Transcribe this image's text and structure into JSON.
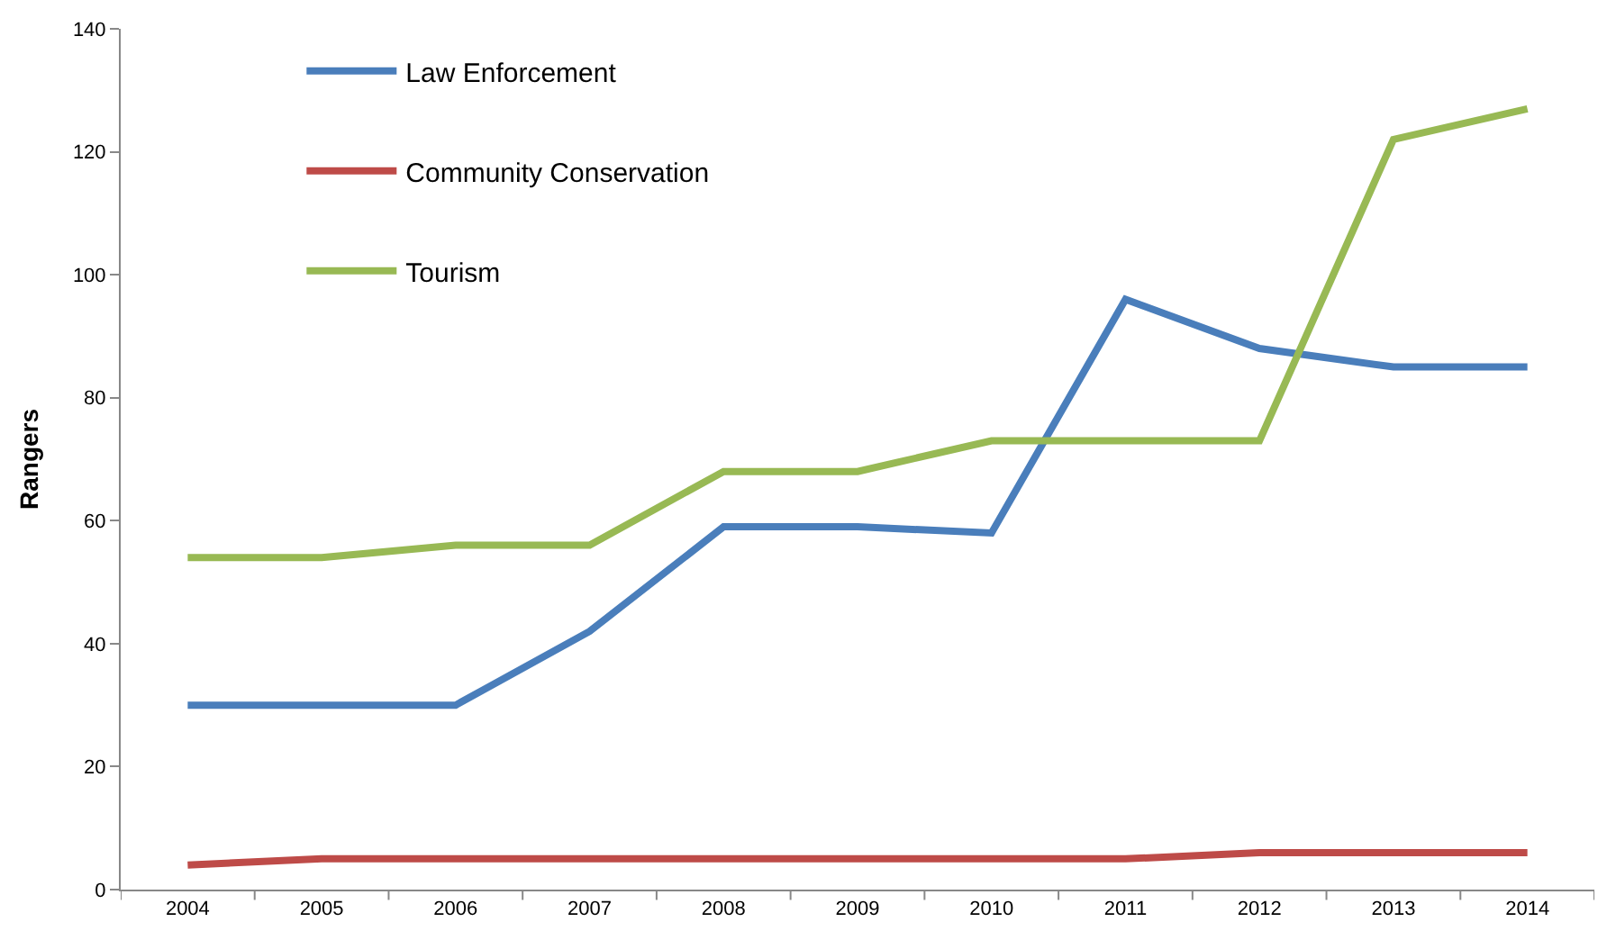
{
  "chart_data": {
    "type": "line",
    "ylabel": "Rangers",
    "categories": [
      "2004",
      "2005",
      "2006",
      "2007",
      "2008",
      "2009",
      "2010",
      "2011",
      "2012",
      "2013",
      "2014"
    ],
    "series": [
      {
        "name": "Law Enforcement",
        "color": "#4a7ebb",
        "values": [
          30,
          30,
          30,
          42,
          59,
          59,
          58,
          96,
          88,
          85,
          85
        ]
      },
      {
        "name": "Community Conservation",
        "color": "#be4b48",
        "values": [
          4,
          5,
          5,
          5,
          5,
          5,
          5,
          5,
          6,
          6,
          6
        ]
      },
      {
        "name": "Tourism",
        "color": "#98b954",
        "values": [
          54,
          54,
          56,
          56,
          68,
          68,
          73,
          73,
          73,
          122,
          127
        ]
      }
    ],
    "ylim": [
      0,
      140
    ],
    "yticks": [
      0,
      20,
      40,
      60,
      80,
      100,
      120,
      140
    ],
    "legend": "top left",
    "marker": "none",
    "line_style": "solid"
  }
}
